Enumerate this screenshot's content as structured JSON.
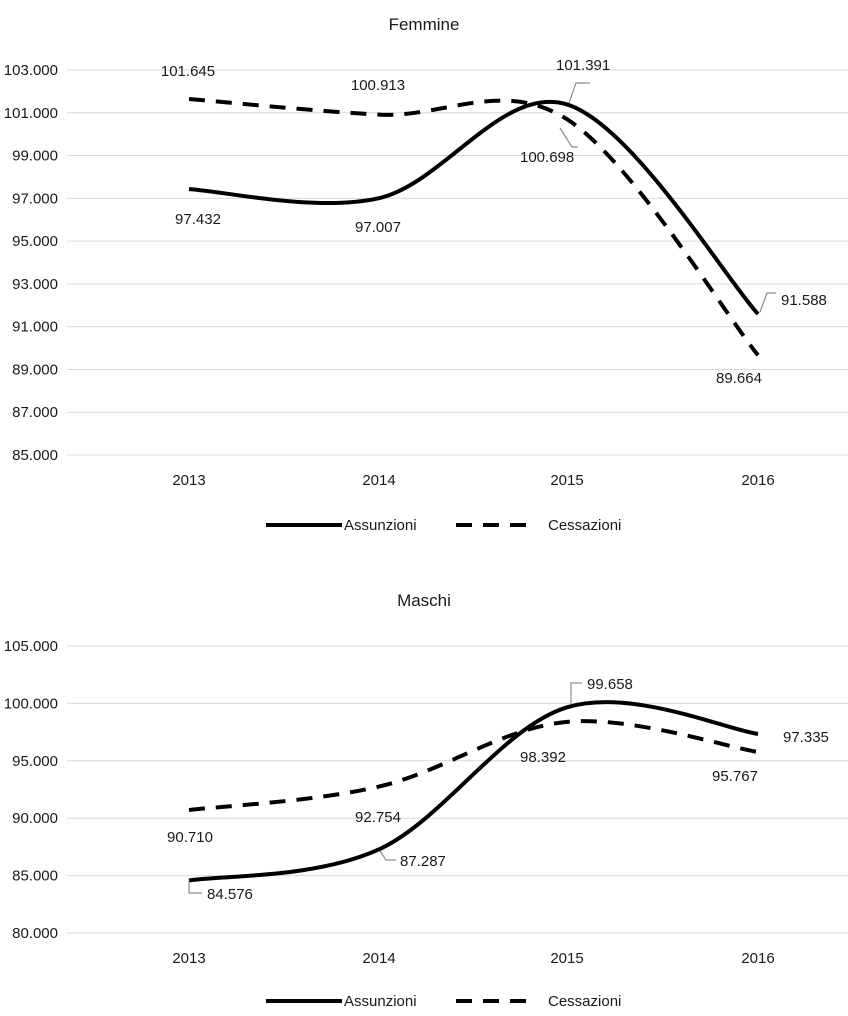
{
  "chart_data": [
    {
      "type": "line",
      "title": "Femmine",
      "categories": [
        "2013",
        "2014",
        "2015",
        "2016"
      ],
      "ylim": [
        85000,
        103000
      ],
      "yticks": [
        85000,
        87000,
        89000,
        91000,
        93000,
        95000,
        97000,
        99000,
        101000,
        103000
      ],
      "ytick_labels": [
        "85.000",
        "87.000",
        "89.000",
        "91.000",
        "93.000",
        "95.000",
        "97.000",
        "99.000",
        "101.000",
        "103.000"
      ],
      "grid": true,
      "legend_position": "bottom",
      "series": [
        {
          "name": "Assunzioni",
          "style": "solid",
          "values": [
            97432,
            97007,
            101391,
            91588
          ],
          "labels": [
            "97.432",
            "97.007",
            "101.391",
            "91.588"
          ]
        },
        {
          "name": "Cessazioni",
          "style": "dashed",
          "values": [
            101645,
            100913,
            100698,
            89664
          ],
          "labels": [
            "101.645",
            "100.913",
            "100.698",
            "89.664"
          ]
        }
      ]
    },
    {
      "type": "line",
      "title": "Maschi",
      "categories": [
        "2013",
        "2014",
        "2015",
        "2016"
      ],
      "ylim": [
        80000,
        105000
      ],
      "yticks": [
        80000,
        85000,
        90000,
        95000,
        100000,
        105000
      ],
      "ytick_labels": [
        "80.000",
        "85.000",
        "90.000",
        "95.000",
        "100.000",
        "105.000"
      ],
      "grid": true,
      "legend_position": "bottom",
      "series": [
        {
          "name": "Assunzioni",
          "style": "solid",
          "values": [
            84576,
            87287,
            99658,
            97335
          ],
          "labels": [
            "84.576",
            "87.287",
            "99.658",
            "97.335"
          ]
        },
        {
          "name": "Cessazioni",
          "style": "dashed",
          "values": [
            90710,
            92754,
            98392,
            95767
          ],
          "labels": [
            "90.710",
            "92.754",
            "98.392",
            "95.767"
          ]
        }
      ]
    }
  ]
}
